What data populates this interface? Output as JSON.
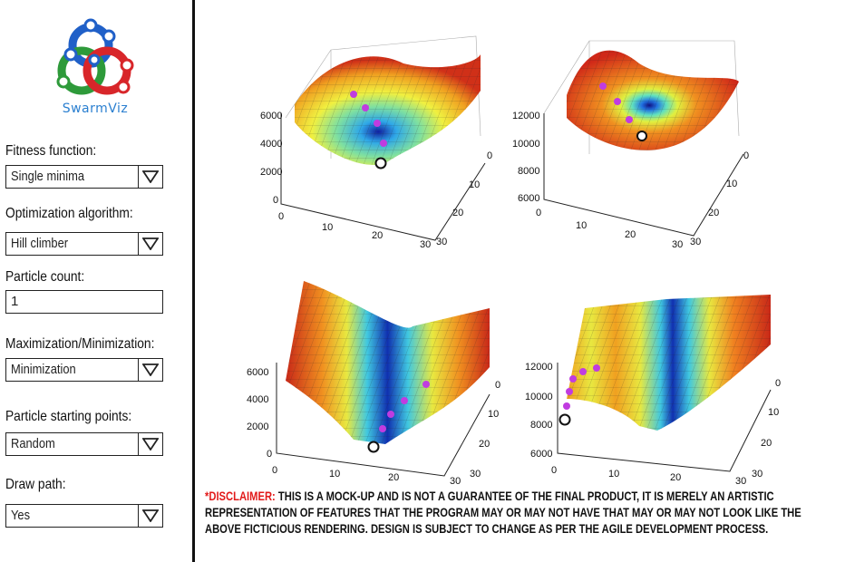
{
  "app": {
    "name": "SwarmViz"
  },
  "sidebar": {
    "fitness_label": "Fitness function:",
    "fitness_value": "Single minima",
    "algorithm_label": "Optimization algorithm:",
    "algorithm_value": "Hill climber",
    "particle_count_label": "Particle count:",
    "particle_count_value": "1",
    "maxmin_label": "Maximization/Minimization:",
    "maxmin_value": "Minimization",
    "starting_points_label": "Particle starting points:",
    "starting_points_value": "Random",
    "draw_path_label": "Draw path:",
    "draw_path_value": "Yes"
  },
  "plots": [
    {
      "z_ticks": [
        "6000",
        "4000",
        "2000",
        "0"
      ],
      "x_ticks": [
        "0",
        "10",
        "20",
        "30"
      ],
      "y_ticks": [
        "0",
        "10",
        "20",
        "30"
      ]
    },
    {
      "z_ticks": [
        "12000",
        "10000",
        "8000",
        "6000"
      ],
      "x_ticks": [
        "0",
        "10",
        "20",
        "30"
      ],
      "y_ticks": [
        "0",
        "10",
        "20",
        "30"
      ]
    },
    {
      "z_ticks": [
        "6000",
        "4000",
        "2000",
        "0"
      ],
      "x_ticks": [
        "0",
        "10",
        "20",
        "30"
      ],
      "y_ticks": [
        "0",
        "10",
        "20",
        "30"
      ]
    },
    {
      "z_ticks": [
        "12000",
        "10000",
        "8000",
        "6000"
      ],
      "x_ticks": [
        "0",
        "10",
        "20",
        "30"
      ],
      "y_ticks": [
        "0",
        "10",
        "20",
        "30"
      ]
    }
  ],
  "disclaimer": {
    "label": "*DISCLAIMER:",
    "text": " THIS IS A MOCK-UP AND IS NOT A GUARANTEE OF THE FINAL PRODUCT, IT IS MERELY AN ARTISTIC REPRESENTATION OF FEATURES THAT THE PROGRAM MAY OR MAY NOT HAVE THAT MAY OR MAY NOT LOOK LIKE THE ABOVE FICTICIOUS RENDERING. DESIGN IS SUBJECT TO CHANGE AS PER THE AGILE DEVELOPMENT PROCESS."
  },
  "colors": {
    "divider": "#111111",
    "logo_blue": "#2a7fd0",
    "logo_red": "#d8262a",
    "logo_green": "#2e9a3a",
    "particle": "#c03ce0",
    "disclaimer_red": "#e21a1a"
  }
}
